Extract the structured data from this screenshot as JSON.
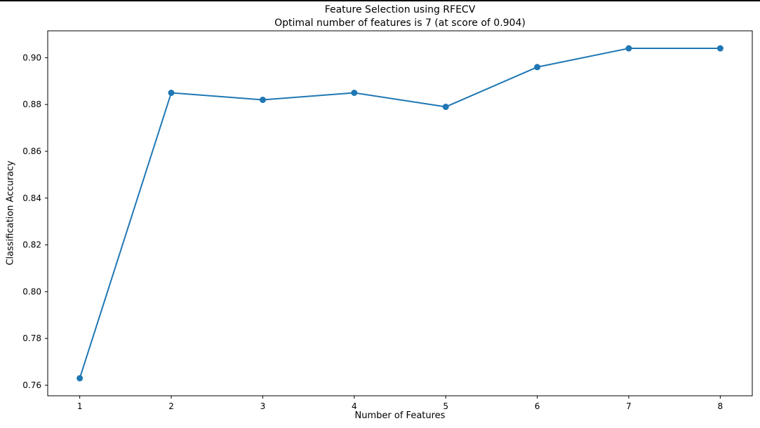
{
  "figure": {
    "background": "#ffffff",
    "top_rule_color": "#000000"
  },
  "chart_data": {
    "type": "line",
    "title": "Feature Selection using RFECV",
    "subtitle": "Optimal number of features is 7 (at score of 0.904)",
    "xlabel": "Number of Features",
    "ylabel": "Classification Accuracy",
    "x": [
      1,
      2,
      3,
      4,
      5,
      6,
      7,
      8
    ],
    "y": [
      0.763,
      0.885,
      0.882,
      0.885,
      0.879,
      0.896,
      0.904,
      0.904
    ],
    "xlim": [
      0.65,
      8.35
    ],
    "ylim": [
      0.7555,
      0.9115
    ],
    "xticks": [
      1,
      2,
      3,
      4,
      5,
      6,
      7,
      8
    ],
    "xtick_labels": [
      "1",
      "2",
      "3",
      "4",
      "5",
      "6",
      "7",
      "8"
    ],
    "yticks": [
      0.76,
      0.78,
      0.8,
      0.82,
      0.84,
      0.86,
      0.88,
      0.9
    ],
    "ytick_labels": [
      "0.76",
      "0.78",
      "0.80",
      "0.82",
      "0.84",
      "0.86",
      "0.88",
      "0.90"
    ],
    "line_color": "#1f77b4",
    "marker": "circle",
    "axis_color": "#000000",
    "grid": false,
    "legend": null
  }
}
